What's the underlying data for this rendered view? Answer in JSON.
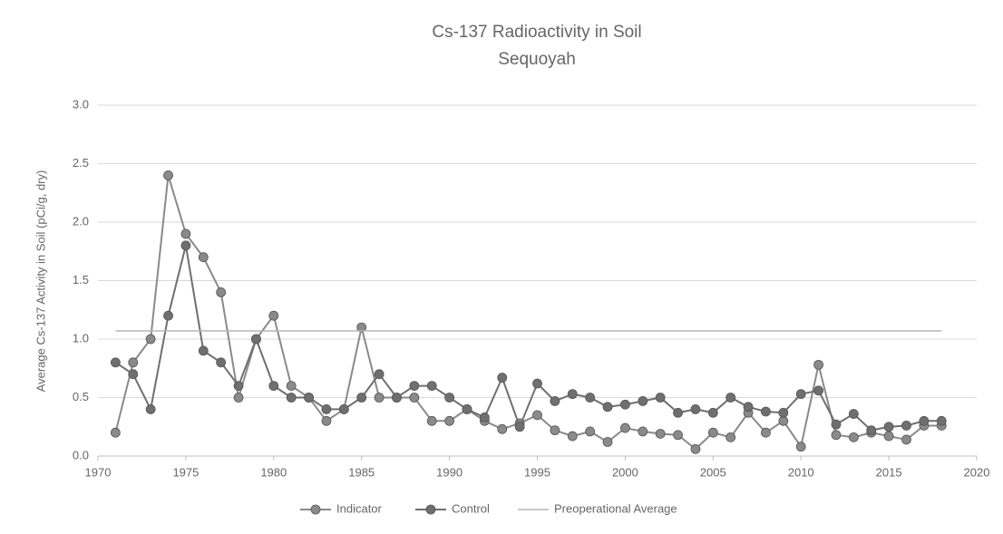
{
  "chart_data": {
    "type": "line",
    "title": "Cs-137 Radioactivity in Soil",
    "subtitle": "Sequoyah",
    "y_label": "Average Cs-137 Activity in Soil (pCi/g, dry)",
    "x": [
      1971,
      1972,
      1973,
      1974,
      1975,
      1976,
      1977,
      1978,
      1979,
      1980,
      1981,
      1982,
      1983,
      1984,
      1985,
      1986,
      1987,
      1988,
      1989,
      1990,
      1991,
      1992,
      1993,
      1994,
      1995,
      1996,
      1997,
      1998,
      1999,
      2000,
      2001,
      2002,
      2003,
      2004,
      2005,
      2006,
      2007,
      2008,
      2009,
      2010,
      2011,
      2012,
      2013,
      2014,
      2015,
      2016,
      2017,
      2018
    ],
    "series": [
      {
        "name": "Indicator",
        "color": "#8a8a8a",
        "marker": true,
        "values": [
          0.2,
          0.8,
          1.0,
          2.4,
          1.9,
          1.7,
          1.4,
          0.5,
          1.0,
          1.2,
          0.6,
          0.5,
          0.3,
          0.4,
          1.1,
          0.5,
          0.5,
          0.5,
          0.3,
          0.3,
          0.4,
          0.3,
          0.23,
          0.28,
          0.35,
          0.22,
          0.17,
          0.21,
          0.12,
          0.24,
          0.21,
          0.19,
          0.18,
          0.06,
          0.2,
          0.16,
          0.37,
          0.2,
          0.3,
          0.08,
          0.78,
          0.18,
          0.16,
          0.2,
          0.17,
          0.14,
          0.26,
          0.26
        ]
      },
      {
        "name": "Control",
        "color": "#6f6f6f",
        "marker": true,
        "values": [
          0.8,
          0.7,
          0.4,
          1.2,
          1.8,
          0.9,
          0.8,
          0.6,
          1.0,
          0.6,
          0.5,
          0.5,
          0.4,
          0.4,
          0.5,
          0.7,
          0.5,
          0.6,
          0.6,
          0.5,
          0.4,
          0.33,
          0.67,
          0.25,
          0.62,
          0.47,
          0.53,
          0.5,
          0.42,
          0.44,
          0.47,
          0.5,
          0.37,
          0.4,
          0.37,
          0.5,
          0.42,
          0.38,
          0.37,
          0.53,
          0.56,
          0.27,
          0.36,
          0.22,
          0.25,
          0.26,
          0.3,
          0.3
        ]
      },
      {
        "name": "Preoperational Average",
        "color": "#b5b5b5",
        "marker": false,
        "x": [
          1971,
          2018
        ],
        "values": [
          1.07,
          1.07
        ]
      }
    ],
    "xlim": [
      1970,
      2020
    ],
    "xticks": [
      1970,
      1975,
      1980,
      1985,
      1990,
      1995,
      2000,
      2005,
      2010,
      2015,
      2020
    ],
    "ylim": [
      0,
      3
    ],
    "yticks": [
      {
        "value": 0,
        "label": "0.0"
      },
      {
        "value": 0.5,
        "label": "0.5"
      },
      {
        "value": 1,
        "label": "1.0"
      },
      {
        "value": 1.5,
        "label": "1.5"
      },
      {
        "value": 2,
        "label": "2.0"
      },
      {
        "value": 2.5,
        "label": "2.5"
      },
      {
        "value": 3,
        "label": "3.0"
      }
    ],
    "grid": true,
    "legend": "bottom"
  }
}
